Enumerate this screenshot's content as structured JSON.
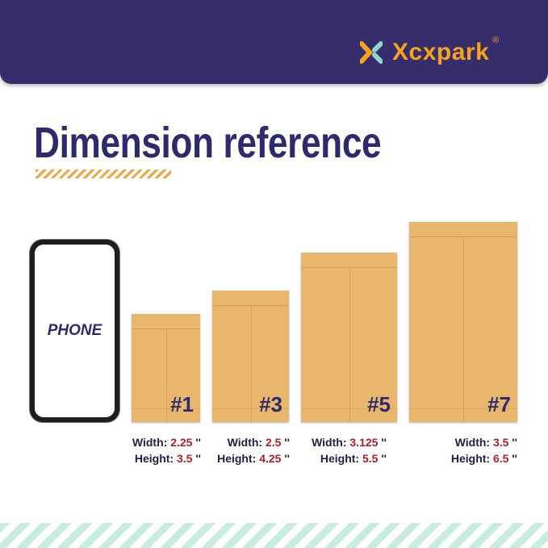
{
  "brand": {
    "name": "Xcxpark",
    "registered": "®",
    "colors": {
      "banner": "#352d6c",
      "logo": "#f7a21b"
    }
  },
  "title": "Dimension reference",
  "phone": {
    "label": "PHONE"
  },
  "envelopes": [
    {
      "number": "#1",
      "width_label": "Width:",
      "width": "2.25",
      "height_label": "Height:",
      "height": "3.5",
      "unit": "''"
    },
    {
      "number": "#3",
      "width_label": "Width:",
      "width": "2.5",
      "height_label": "Height:",
      "height": "4.25",
      "unit": "''"
    },
    {
      "number": "#5",
      "width_label": "Width:",
      "width": "3.125",
      "height_label": "Height:",
      "height": "5.5",
      "unit": "''"
    },
    {
      "number": "#7",
      "width_label": "Width:",
      "width": "3.5",
      "height_label": "Height:",
      "height": "6.5",
      "unit": "''"
    }
  ]
}
